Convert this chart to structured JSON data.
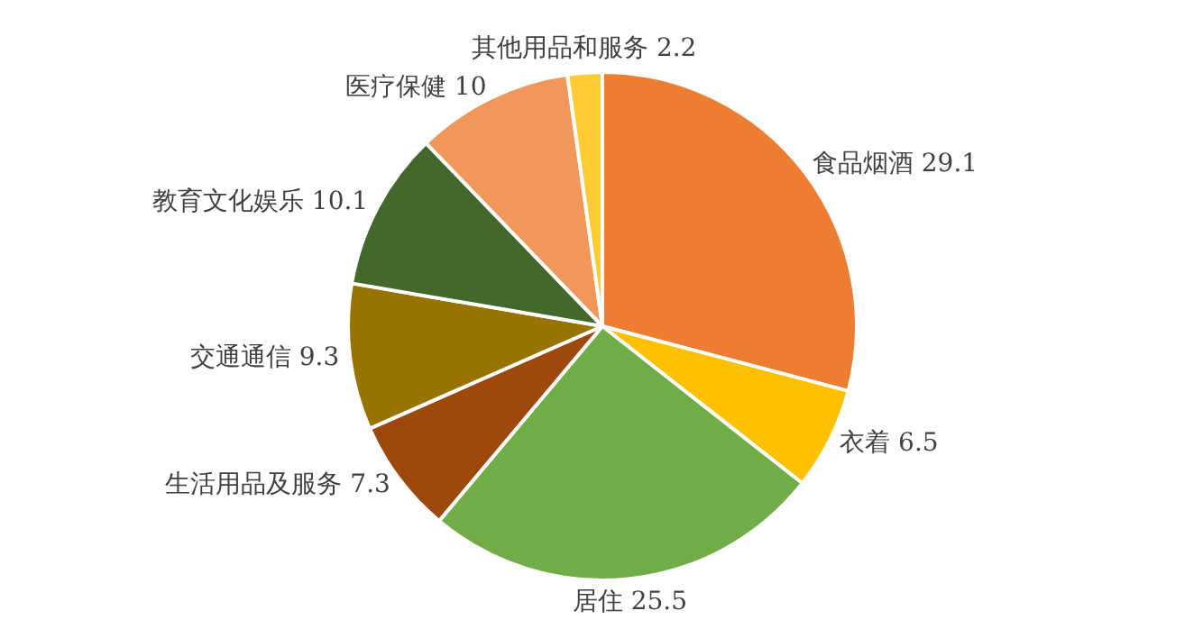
{
  "chart_data": {
    "type": "pie",
    "categories": [
      "食品烟酒",
      "衣着",
      "居住",
      "生活用品及服务",
      "交通通信",
      "教育文化娱乐",
      "医疗保健",
      "其他用品和服务"
    ],
    "values": [
      29.1,
      6.5,
      25.5,
      7.3,
      9.3,
      10.1,
      10,
      2.2
    ],
    "colors": [
      "#ed7d31",
      "#ffc000",
      "#70ad47",
      "#9e480e",
      "#997300",
      "#43682b",
      "#f1975a",
      "#ffcd33"
    ],
    "data_labels": true,
    "legend": false
  }
}
